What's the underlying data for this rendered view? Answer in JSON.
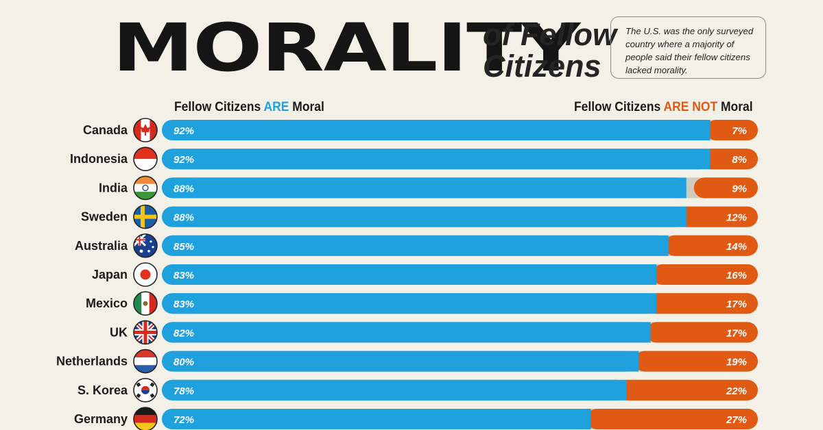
{
  "header": {
    "title_main": "MORALITY",
    "title_sub": "of Fellow Citizens",
    "note": "The U.S. was the only surveyed country where a majority of people said their fellow citizens lacked morality."
  },
  "legend": {
    "left_pre": "Fellow Citizens ",
    "left_hl": "ARE",
    "left_post": " Moral",
    "right_pre": "Fellow Citizens ",
    "right_hl": "ARE NOT",
    "right_post": " Moral"
  },
  "colors": {
    "moral": "#1ea1dc",
    "not_moral": "#e05a14",
    "other": "#cfcbbf",
    "background": "#f3f1e7"
  },
  "chart_data": {
    "type": "bar",
    "orientation": "horizontal-stacked-100",
    "categories": [
      "Canada",
      "Indonesia",
      "India",
      "Sweden",
      "Australia",
      "Japan",
      "Mexico",
      "UK",
      "Netherlands",
      "S. Korea",
      "Germany"
    ],
    "flag_icons": [
      "canada-flag-icon",
      "indonesia-flag-icon",
      "india-flag-icon",
      "sweden-flag-icon",
      "australia-flag-icon",
      "japan-flag-icon",
      "mexico-flag-icon",
      "uk-flag-icon",
      "netherlands-flag-icon",
      "south-korea-flag-icon",
      "germany-flag-icon"
    ],
    "series": [
      {
        "name": "Fellow Citizens ARE Moral",
        "values": [
          92,
          92,
          88,
          88,
          85,
          83,
          83,
          82,
          80,
          78,
          72
        ]
      },
      {
        "name": "Fellow Citizens ARE NOT Moral",
        "values": [
          7,
          8,
          9,
          12,
          14,
          16,
          17,
          17,
          19,
          22,
          27
        ]
      }
    ],
    "value_suffix": "%",
    "xlim": [
      0,
      100
    ]
  }
}
